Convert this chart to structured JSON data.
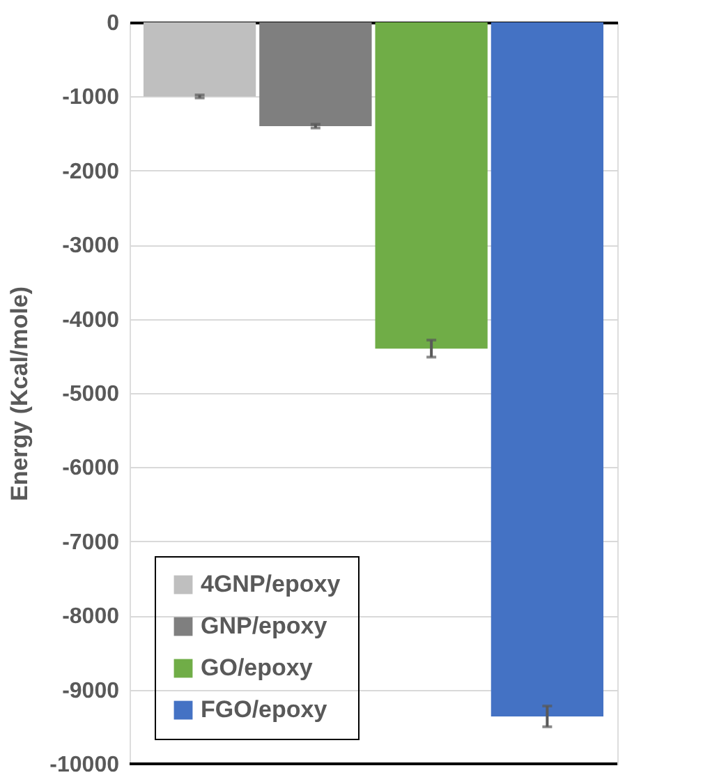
{
  "chart_data": {
    "type": "bar",
    "ylabel": "Energy (Kcal/mole)",
    "categories": [
      null
    ],
    "series": [
      {
        "name": "4GNP/epoxy",
        "color": "#bfbfbf",
        "values": [
          -1000
        ],
        "errors": [
          20
        ]
      },
      {
        "name": "GNP/epoxy",
        "color": "#7f7f7f",
        "values": [
          -1400
        ],
        "errors": [
          25
        ]
      },
      {
        "name": "GO/epoxy",
        "color": "#70ad47",
        "values": [
          -4400
        ],
        "errors": [
          115
        ]
      },
      {
        "name": "FGO/epoxy",
        "color": "#4472c4",
        "values": [
          -9360
        ],
        "errors": [
          140
        ]
      }
    ],
    "ylim": [
      -10000,
      0
    ],
    "yticks": [
      0,
      -1000,
      -2000,
      -3000,
      -4000,
      -5000,
      -6000,
      -7000,
      -8000,
      -9000,
      -10000
    ],
    "grid": "y",
    "legend": "bottom left",
    "tick_labels": "y"
  }
}
